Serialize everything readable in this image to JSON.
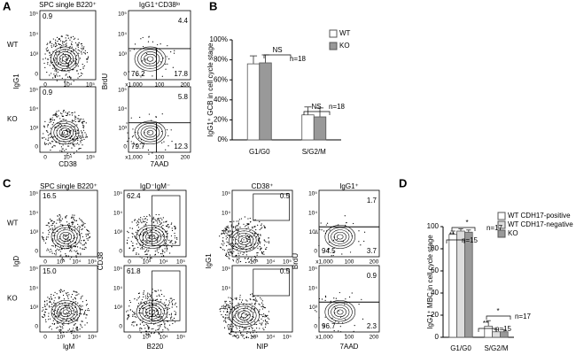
{
  "chart_data": [
    {
      "type": "bar",
      "panel": "B",
      "y_label": "IgG1⁺ GCB in cell cycle stage",
      "categories": [
        "G1/G0",
        "S/G2/M"
      ],
      "series": [
        {
          "name": "WT",
          "color": "#ffffff",
          "values": [
            76,
            25
          ],
          "errors": [
            8,
            8
          ]
        },
        {
          "name": "KO",
          "color": "#999999",
          "values": [
            77,
            23
          ],
          "errors": [
            8,
            9
          ]
        }
      ],
      "ylim": [
        0,
        100
      ],
      "yticks": [
        {
          "value": 0,
          "label": "0%"
        },
        {
          "value": 20,
          "label": "20%"
        },
        {
          "value": 40,
          "label": "40%"
        },
        {
          "value": 60,
          "label": "60%"
        },
        {
          "value": 80,
          "label": "80%"
        },
        {
          "value": 100,
          "label": "100%"
        }
      ],
      "annotations": [
        "NS",
        "n=18",
        "NS",
        "n=18"
      ],
      "legend": "upper right"
    },
    {
      "type": "bar",
      "panel": "D",
      "y_label": "IgG1⁺ MBC in cell cycle stage",
      "categories": [
        "G1/G0",
        "S/G2/M"
      ],
      "series": [
        {
          "name": "WT CDH17-positive",
          "color": "#ffffff",
          "values": [
            93,
            10
          ],
          "errors": [
            3,
            5
          ]
        },
        {
          "name": "WT CDH17-negative",
          "color": "#dddddd",
          "values": [
            96,
            5
          ],
          "errors": [
            2,
            2
          ]
        },
        {
          "name": "KO",
          "color": "#999999",
          "values": [
            95,
            5
          ],
          "errors": [
            2,
            2
          ]
        }
      ],
      "ylim": [
        0,
        100
      ],
      "yticks": [
        0,
        20,
        40,
        60,
        80,
        100
      ],
      "annotations": [
        "*",
        "n=17",
        "**",
        "n=15",
        "*",
        "n=17",
        "**",
        "n=15"
      ],
      "legend": "upper right"
    }
  ],
  "flow": {
    "A": {
      "label": "A",
      "headers": [
        "SPC single B220⁺",
        "IgG1⁺CD38ˡᵒ"
      ],
      "rows": [
        "WT",
        "KO"
      ],
      "y_labels": [
        "IgG1",
        "BrdU"
      ],
      "x_labels": [
        "CD38",
        "7AAD"
      ],
      "y_ticks": [
        [
          "10⁵",
          "10⁴",
          "10³",
          "0"
        ],
        [
          "10⁵",
          "10⁴",
          "10³",
          "0"
        ]
      ],
      "x_ticks": [
        [
          "0",
          "10⁴",
          "10⁵"
        ],
        [
          "x1,000",
          "100",
          "200"
        ]
      ],
      "gates": [
        [
          [
            "0.9"
          ],
          [
            "4.4",
            "76.2",
            "17.8"
          ]
        ],
        [
          [
            "0.9"
          ],
          [
            "5.8",
            "79.7",
            "12.3"
          ]
        ]
      ]
    },
    "C": {
      "label": "C",
      "headers": [
        "SPC single B220⁺",
        "IgD⁻IgM⁻",
        "CD38⁺",
        "IgG1⁺"
      ],
      "rows": [
        "WT",
        "KO"
      ],
      "y_labels": [
        "IgD",
        "CD38",
        "IgG1",
        "BrdU"
      ],
      "x_labels": [
        "IgM",
        "B220",
        "NIP",
        "7AAD"
      ],
      "y_ticks": [
        [
          "10⁵",
          "10⁴",
          "10³",
          "0"
        ],
        [
          "10⁵",
          "10⁴",
          "10³",
          "0"
        ],
        [
          "10⁵",
          "10⁴",
          "10³",
          "0"
        ],
        [
          "10⁵",
          "10⁴",
          "10³",
          "0"
        ]
      ],
      "x_ticks": [
        [
          "0",
          "10³",
          "10⁴",
          "10⁵"
        ],
        [
          "0",
          "10³",
          "10⁴",
          "10⁵"
        ],
        [
          "0",
          "10³",
          "10⁴",
          "10⁵"
        ],
        [
          "x1,000",
          "100",
          "200"
        ]
      ],
      "gates": [
        [
          [
            "16.5"
          ],
          [
            "62.4"
          ],
          [
            "0.5"
          ],
          [
            "1.7",
            "94.5",
            "3.7"
          ]
        ],
        [
          [
            "15.0"
          ],
          [
            "61.8"
          ],
          [
            "0.5"
          ],
          [
            "0.9",
            "96.7",
            "2.3"
          ]
        ]
      ]
    }
  }
}
